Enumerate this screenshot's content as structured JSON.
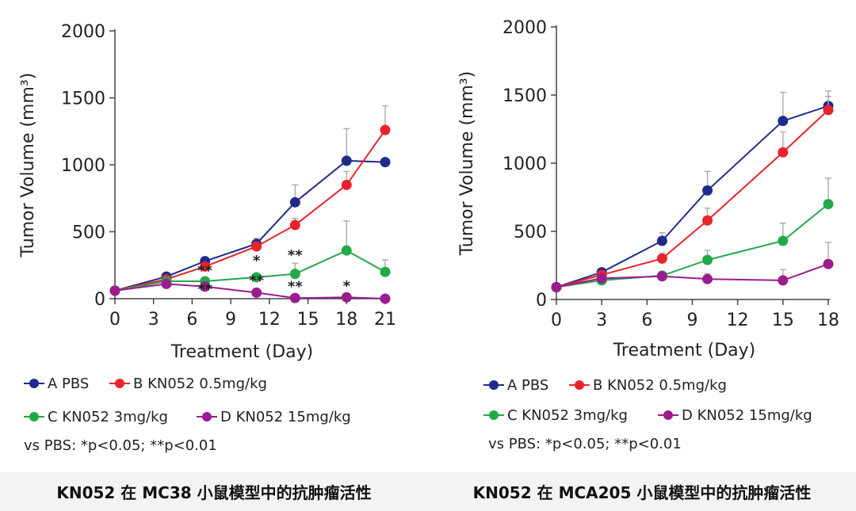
{
  "chart_data": [
    {
      "type": "line",
      "ylabel": "Tumor Volume (mm³)",
      "xlabel": "Treatment (Day)",
      "ylim": [
        0,
        2000
      ],
      "yticks": [
        0,
        500,
        1000,
        1500,
        2000
      ],
      "xlim": [
        0,
        21
      ],
      "xticks": [
        0,
        3,
        6,
        9,
        12,
        15,
        18,
        21
      ],
      "legend_placement": "bottom",
      "grid": false,
      "series": [
        {
          "name": "A PBS",
          "color": "#1f2a8c",
          "points": [
            [
              0,
              60
            ],
            [
              4,
              165
            ],
            [
              7,
              280
            ],
            [
              11,
              410
            ],
            [
              14,
              720
            ],
            [
              18,
              1030
            ],
            [
              21,
              1020
            ]
          ],
          "err": [
            0,
            20,
            30,
            40,
            130,
            240,
            0
          ]
        },
        {
          "name": "B KN052 0.5mg/kg",
          "color": "#e8242a",
          "points": [
            [
              0,
              60
            ],
            [
              4,
              145
            ],
            [
              7,
              240
            ],
            [
              11,
              390
            ],
            [
              14,
              550
            ],
            [
              18,
              850
            ],
            [
              21,
              1260
            ]
          ],
          "err": [
            0,
            15,
            25,
            30,
            50,
            100,
            180
          ]
        },
        {
          "name": "C KN052 3mg/kg",
          "color": "#23a84a",
          "points": [
            [
              0,
              60
            ],
            [
              4,
              130
            ],
            [
              7,
              130
            ],
            [
              11,
              160
            ],
            [
              14,
              185
            ],
            [
              18,
              360
            ],
            [
              21,
              200
            ]
          ],
          "err": [
            0,
            10,
            15,
            20,
            80,
            220,
            90
          ]
        },
        {
          "name": "D KN052 15mg/kg",
          "color": "#9b1c8e",
          "points": [
            [
              0,
              60
            ],
            [
              4,
              110
            ],
            [
              7,
              90
            ],
            [
              11,
              45
            ],
            [
              14,
              5
            ],
            [
              18,
              10
            ],
            [
              21,
              0
            ]
          ],
          "err": [
            0,
            10,
            20,
            10,
            5,
            10,
            0
          ]
        }
      ],
      "annotations": [
        {
          "x": 7,
          "y": 175,
          "text": "**"
        },
        {
          "x": 7,
          "y": 35,
          "text": "**"
        },
        {
          "x": 11,
          "y": 250,
          "text": "*"
        },
        {
          "x": 11,
          "y": 100,
          "text": "**"
        },
        {
          "x": 14,
          "y": 290,
          "text": "**"
        },
        {
          "x": 14,
          "y": 55,
          "text": "**"
        },
        {
          "x": 18,
          "y": 60,
          "text": "*"
        }
      ],
      "note": "vs PBS: *p<0.05; **p<0.01",
      "caption": "KN052 在 MC38 小鼠模型中的抗肿瘤活性"
    },
    {
      "type": "line",
      "ylabel": "Tumor Volume (mm³)",
      "xlabel": "Treatment (Day)",
      "ylim": [
        0,
        2000
      ],
      "yticks": [
        0,
        500,
        1000,
        1500,
        2000
      ],
      "xlim": [
        0,
        18
      ],
      "xticks": [
        0,
        3,
        6,
        9,
        12,
        15,
        18
      ],
      "legend_placement": "bottom",
      "grid": false,
      "series": [
        {
          "name": "A PBS",
          "color": "#1f2a8c",
          "points": [
            [
              0,
              90
            ],
            [
              3,
              200
            ],
            [
              7,
              430
            ],
            [
              10,
              800
            ],
            [
              15,
              1310
            ],
            [
              18,
              1420
            ]
          ],
          "err": [
            0,
            0,
            60,
            140,
            210,
            110
          ]
        },
        {
          "name": "B KN052 0.5mg/kg",
          "color": "#e8242a",
          "points": [
            [
              0,
              90
            ],
            [
              3,
              180
            ],
            [
              7,
              300
            ],
            [
              10,
              580
            ],
            [
              15,
              1080
            ],
            [
              18,
              1390
            ]
          ],
          "err": [
            0,
            0,
            40,
            90,
            150,
            100
          ]
        },
        {
          "name": "C KN052 3mg/kg",
          "color": "#23a84a",
          "points": [
            [
              0,
              90
            ],
            [
              3,
              140
            ],
            [
              7,
              175
            ],
            [
              10,
              290
            ],
            [
              15,
              430
            ],
            [
              18,
              700
            ]
          ],
          "err": [
            0,
            0,
            0,
            70,
            130,
            190
          ]
        },
        {
          "name": "D KN052 15mg/kg",
          "color": "#9b1c8e",
          "points": [
            [
              0,
              90
            ],
            [
              3,
              155
            ],
            [
              7,
              170
            ],
            [
              10,
              150
            ],
            [
              15,
              140
            ],
            [
              18,
              260
            ]
          ],
          "err": [
            0,
            0,
            0,
            40,
            80,
            160
          ]
        }
      ],
      "annotations": [],
      "note": "vs PBS: *p<0.05; **p<0.01",
      "caption": "KN052 在 MCA205 小鼠模型中的抗肿瘤活性"
    }
  ]
}
